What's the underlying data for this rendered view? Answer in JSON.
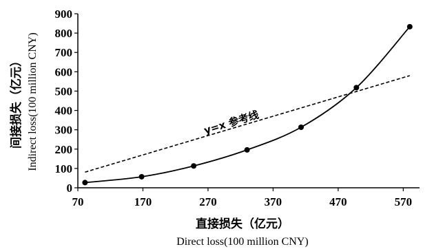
{
  "chart_data": {
    "type": "line",
    "title": "",
    "xlabel_cn": "直接损失（亿元）",
    "xlabel_en": "Direct loss(100 million CNY)",
    "ylabel_cn": "间接损失（亿元）",
    "ylabel_en": "Indirect loss(100 million CNY)",
    "xlim": [
      70,
      595
    ],
    "ylim": [
      0,
      900
    ],
    "xticks": [
      "70",
      "170",
      "270",
      "370",
      "470",
      "570"
    ],
    "yticks": [
      "0",
      "100",
      "200",
      "300",
      "400",
      "500",
      "600",
      "700",
      "800",
      "900"
    ],
    "grid": false,
    "series": [
      {
        "style": "solid-with-markers",
        "x": [
          81,
          168,
          248,
          330,
          413,
          498,
          580
        ],
        "y": [
          27,
          57,
          113,
          196,
          313,
          518,
          833
        ]
      },
      {
        "style": "dashed",
        "x": [
          81,
          580
        ],
        "y": [
          81,
          580
        ]
      }
    ],
    "annotation": "y=x 参考线"
  }
}
